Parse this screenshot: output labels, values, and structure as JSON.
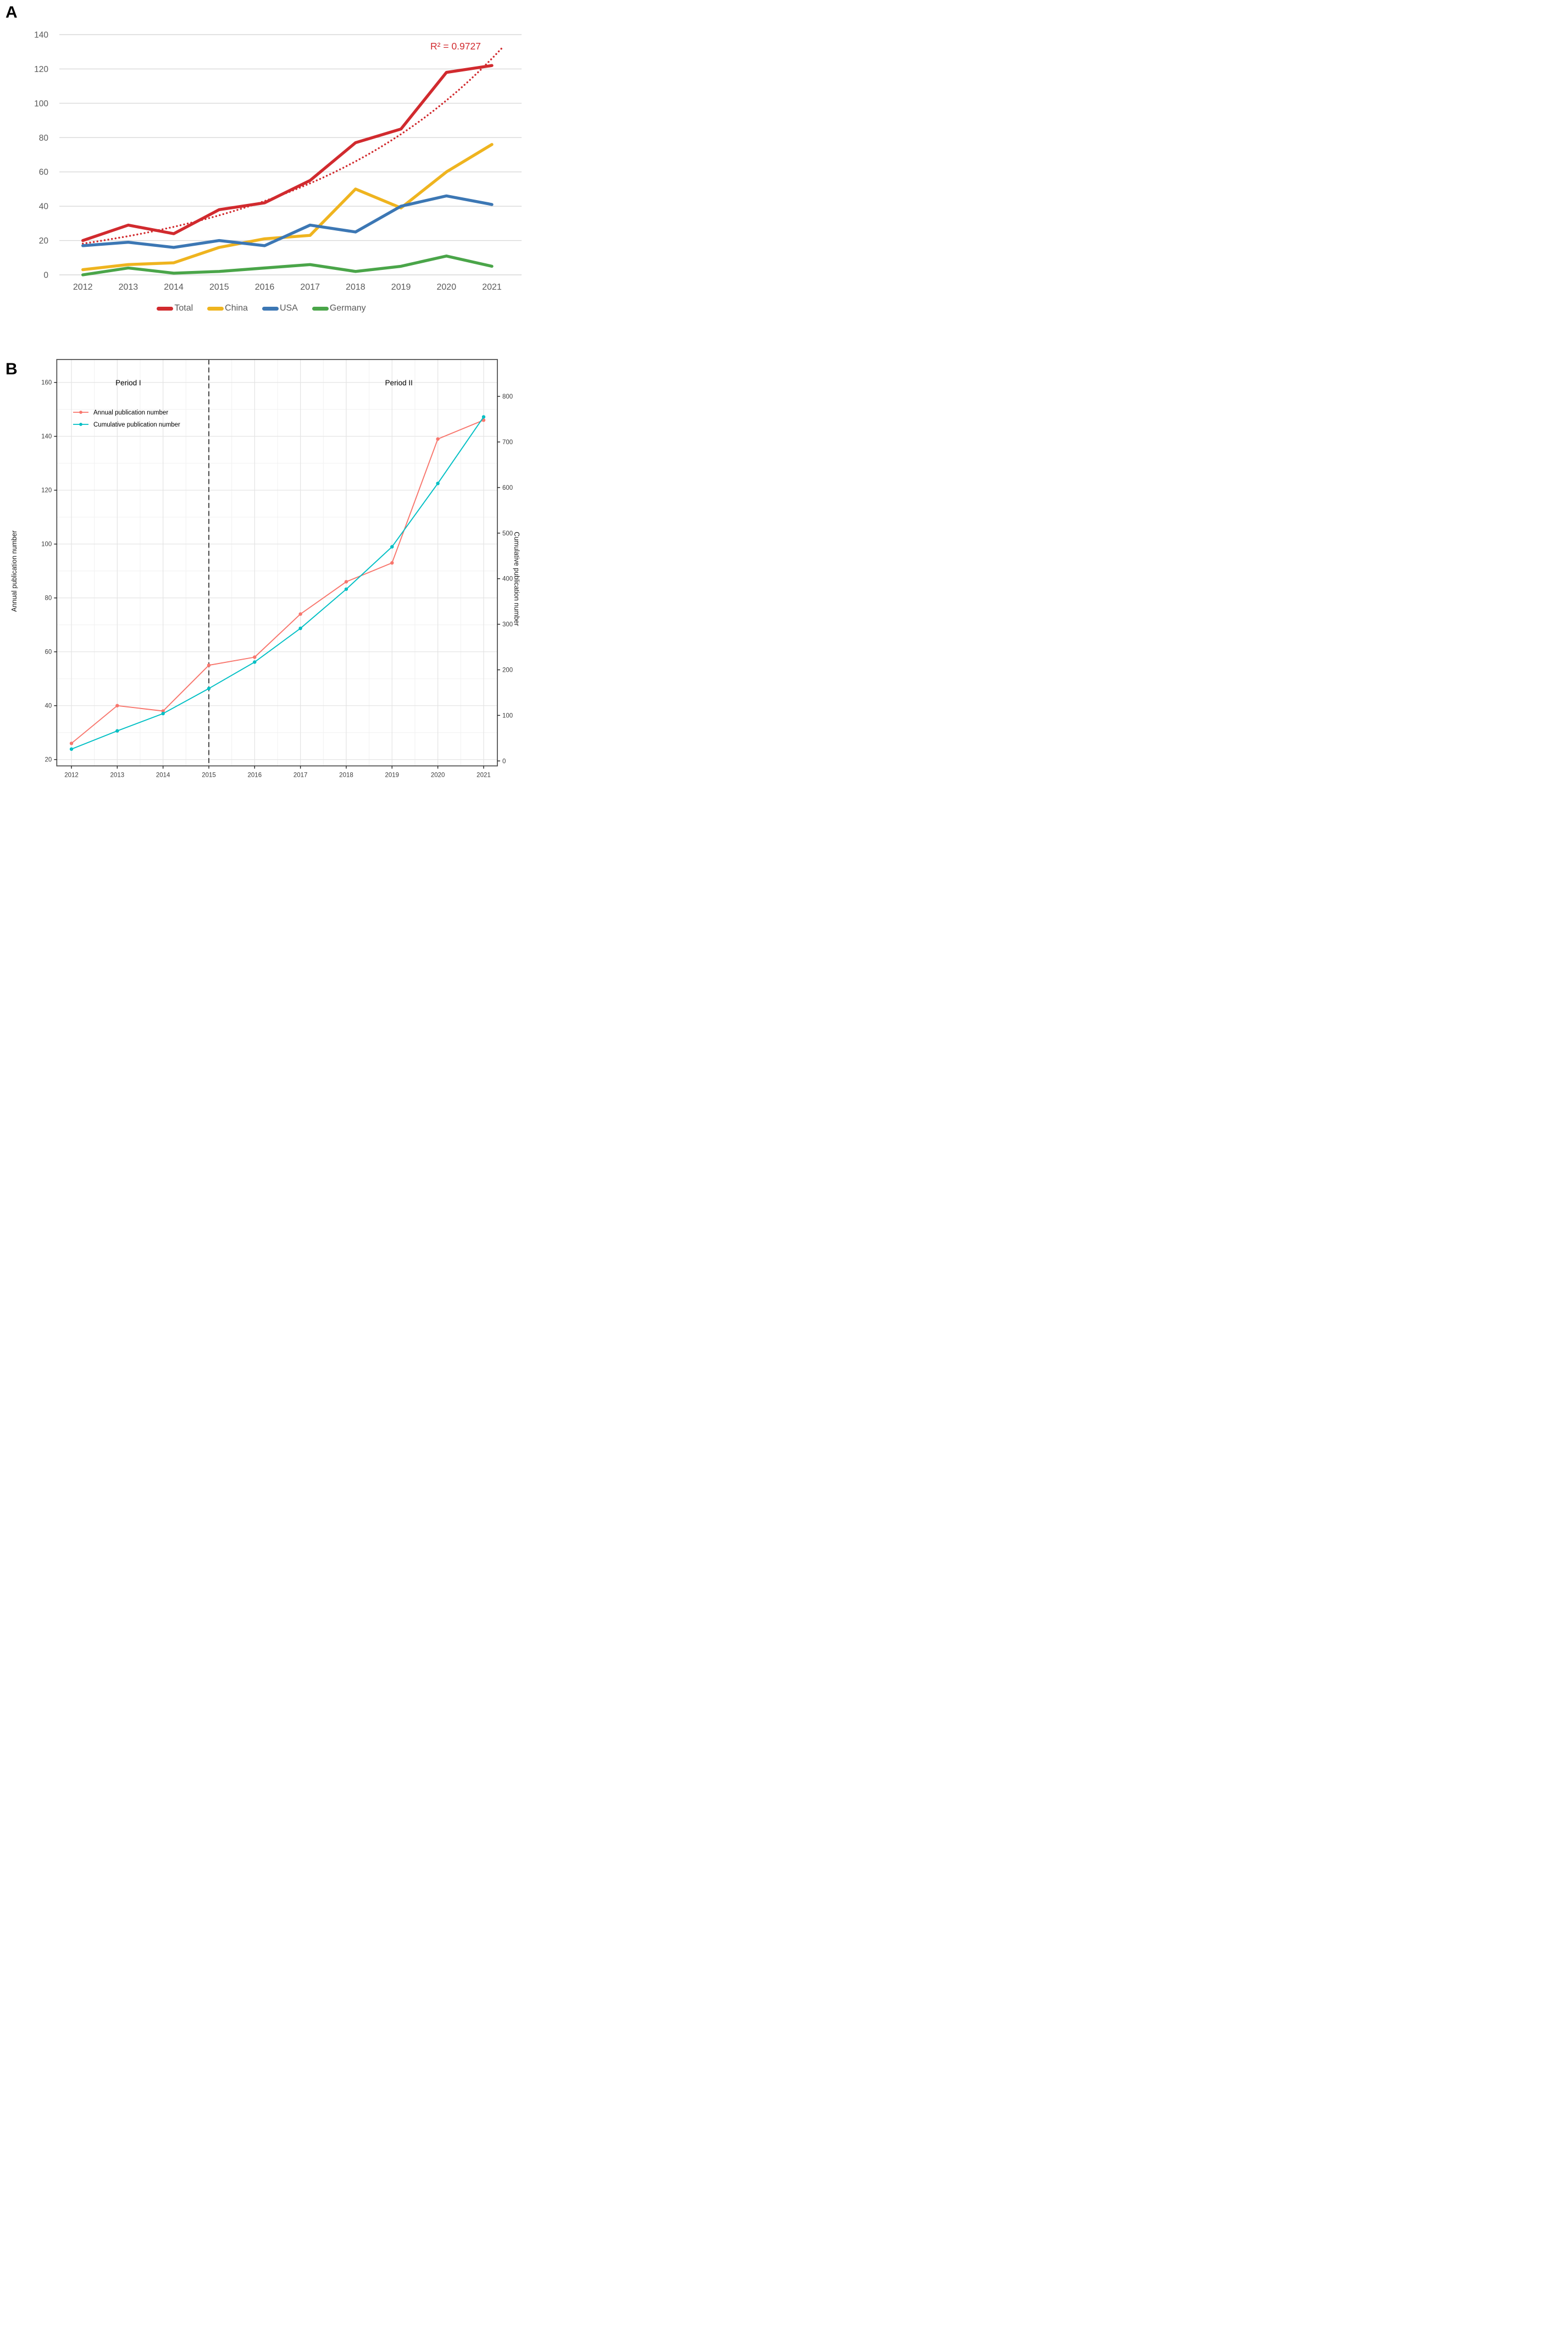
{
  "figure": {
    "background_color": "#ffffff",
    "panels": [
      "A",
      "B"
    ]
  },
  "chart_data": [
    {
      "panel_label": "A",
      "type": "line",
      "title": "",
      "xlabel": "",
      "ylabel": "",
      "categories": [
        "2012",
        "2013",
        "2014",
        "2015",
        "2016",
        "2017",
        "2018",
        "2019",
        "2020",
        "2021"
      ],
      "ylim": [
        0,
        140
      ],
      "ytick_step": 20,
      "yticks": [
        0,
        20,
        40,
        60,
        80,
        100,
        120,
        140
      ],
      "grid": "horizontal-only",
      "gridline_color": "#d9d9d9",
      "tick_text_color": "#595959",
      "legend_position": "bottom",
      "series": [
        {
          "name": "Total",
          "color": "#d12a2e",
          "values": [
            20,
            29,
            24,
            38,
            42,
            55,
            77,
            85,
            118,
            122
          ]
        },
        {
          "name": "China",
          "color": "#efb41f",
          "values": [
            3,
            6,
            7,
            16,
            21,
            23,
            50,
            39,
            60,
            76
          ]
        },
        {
          "name": "USA",
          "color": "#3c77b4",
          "values": [
            17,
            19,
            16,
            20,
            17,
            29,
            25,
            40,
            46,
            41
          ]
        },
        {
          "name": "Germany",
          "color": "#4aa549",
          "values": [
            0,
            4,
            1,
            2,
            4,
            6,
            2,
            5,
            11,
            5
          ]
        }
      ],
      "trendline": {
        "applies_to": "Total",
        "shape": "exponential",
        "a": 18.2,
        "b": 0.215,
        "x_end": 9.25,
        "style": "dotted",
        "color": "#d12a2e",
        "label": "R² = 0.9727"
      }
    },
    {
      "panel_label": "B",
      "type": "line",
      "title": "",
      "categories": [
        "2012",
        "2013",
        "2014",
        "2015",
        "2016",
        "2017",
        "2018",
        "2019",
        "2020",
        "2021"
      ],
      "left_axis": {
        "label": "Annual publication number",
        "range": [
          20,
          160
        ],
        "tick_step": 20,
        "ticks": [
          20,
          40,
          60,
          80,
          100,
          120,
          140,
          160
        ]
      },
      "right_axis": {
        "label": "Cumulative publication number",
        "range": [
          0,
          800
        ],
        "tick_step": 100,
        "ticks": [
          0,
          100,
          200,
          300,
          400,
          500,
          600,
          700,
          800
        ]
      },
      "grid": "both-major-minor",
      "border_color": "#545454",
      "gridline_major_color": "#e3e3e3",
      "gridline_minor_color": "#f1f1f1",
      "tick_text_color": "#3d3d3d",
      "divider": {
        "x_category": "2015",
        "style": "dashed",
        "color": "#1a1a1a"
      },
      "annotations": [
        {
          "text": "Period I",
          "x_index": 1.24,
          "side": "left-of-divider"
        },
        {
          "text": "Period II",
          "x_index": 7.15,
          "side": "right-of-divider"
        }
      ],
      "legend_position": "inside-top-left",
      "series": [
        {
          "name": "Annual publication number",
          "axis": "left",
          "color": "#f8766d",
          "marker": "circle",
          "values": [
            26,
            40,
            38,
            55,
            58,
            74,
            86,
            93,
            139,
            146
          ]
        },
        {
          "name": "Cumulative publication number",
          "axis": "right",
          "color": "#00bfc4",
          "marker": "circle",
          "values": [
            26,
            66,
            104,
            159,
            217,
            291,
            377,
            470,
            609,
            755
          ]
        }
      ]
    }
  ]
}
